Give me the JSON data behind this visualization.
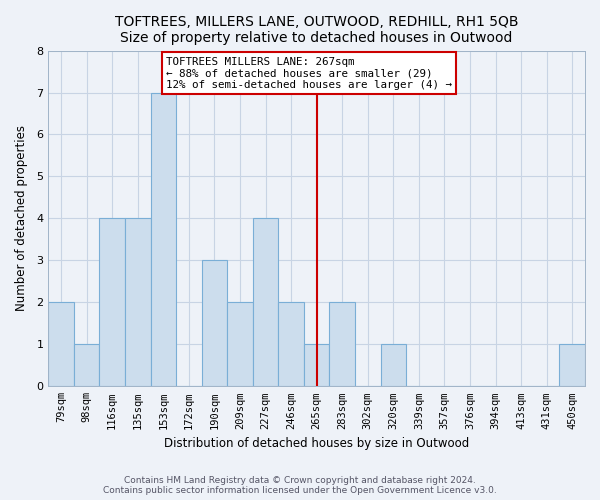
{
  "title": "TOFTREES, MILLERS LANE, OUTWOOD, REDHILL, RH1 5QB",
  "subtitle": "Size of property relative to detached houses in Outwood",
  "xlabel": "Distribution of detached houses by size in Outwood",
  "ylabel": "Number of detached properties",
  "bar_labels": [
    "79sqm",
    "98sqm",
    "116sqm",
    "135sqm",
    "153sqm",
    "172sqm",
    "190sqm",
    "209sqm",
    "227sqm",
    "246sqm",
    "265sqm",
    "283sqm",
    "302sqm",
    "320sqm",
    "339sqm",
    "357sqm",
    "376sqm",
    "394sqm",
    "413sqm",
    "431sqm",
    "450sqm"
  ],
  "bar_values": [
    2,
    1,
    4,
    4,
    7,
    0,
    3,
    2,
    4,
    2,
    1,
    2,
    0,
    1,
    0,
    0,
    0,
    0,
    0,
    0,
    1
  ],
  "bar_color": "#ccdded",
  "bar_edge_color": "#7aaed6",
  "vline_x_index": 10,
  "vline_color": "#cc0000",
  "ylim": [
    0,
    8
  ],
  "yticks": [
    0,
    1,
    2,
    3,
    4,
    5,
    6,
    7,
    8
  ],
  "annotation_title": "TOFTREES MILLERS LANE: 267sqm",
  "annotation_line1": "← 88% of detached houses are smaller (29)",
  "annotation_line2": "12% of semi-detached houses are larger (4) →",
  "annotation_box_facecolor": "#ffffff",
  "annotation_box_edgecolor": "#cc0000",
  "footer1": "Contains HM Land Registry data © Crown copyright and database right 2024.",
  "footer2": "Contains public sector information licensed under the Open Government Licence v3.0.",
  "grid_color": "#c8d4e4",
  "bg_color": "#eef2f8",
  "title_fontsize": 10,
  "axis_label_fontsize": 8.5,
  "tick_fontsize": 7.5,
  "footer_fontsize": 6.5
}
